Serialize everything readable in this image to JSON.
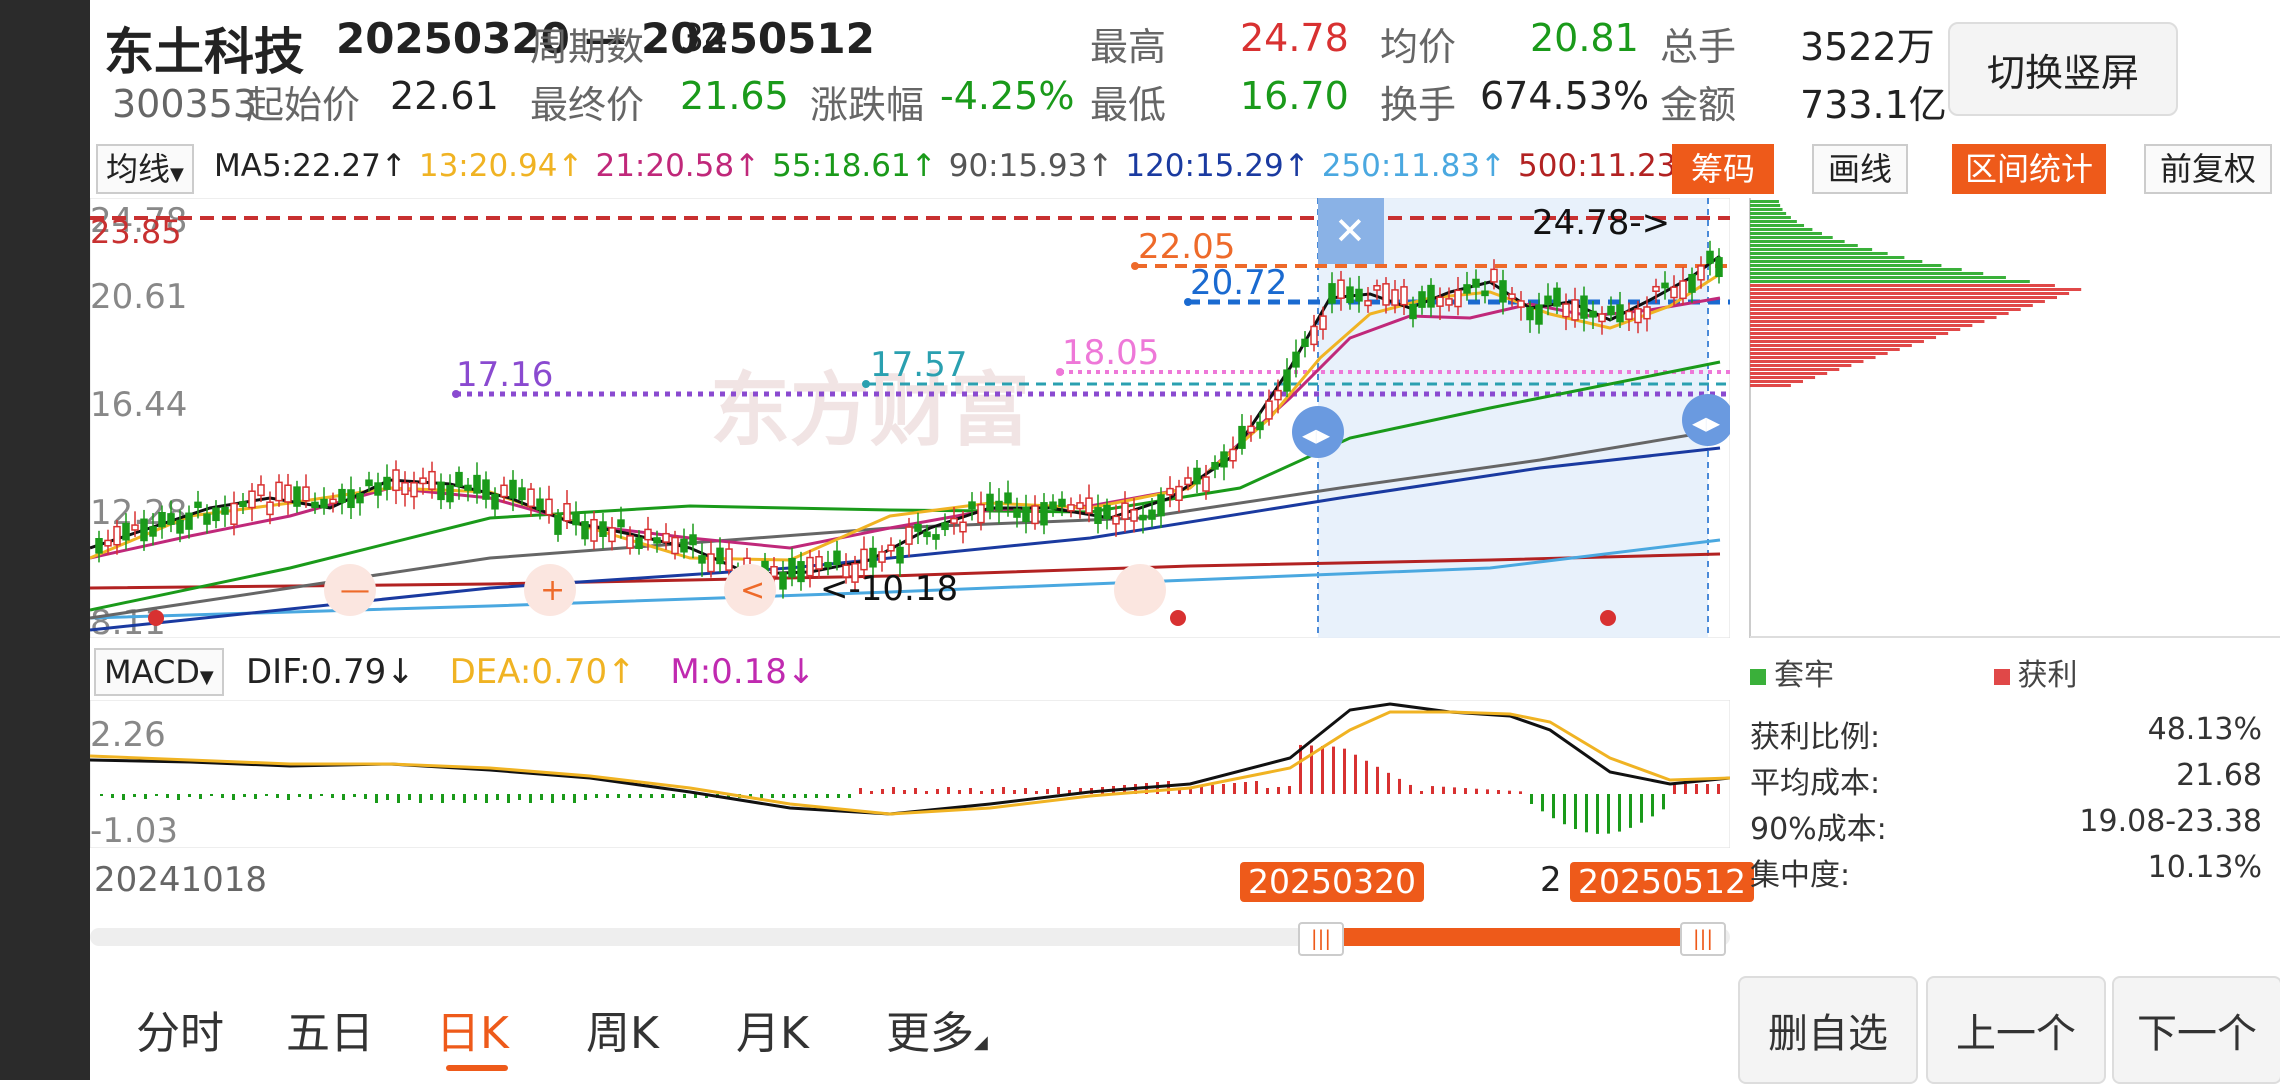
{
  "header": {
    "name": "东土科技",
    "code": "300353",
    "range": "20250320 — 20250512",
    "stats": [
      {
        "label": "周期数",
        "value": "34",
        "color": "#222222"
      },
      {
        "label": "最高",
        "value": "24.78",
        "color": "#d83131"
      },
      {
        "label": "均价",
        "value": "20.81",
        "color": "#1a9a1a"
      },
      {
        "label": "总手",
        "value": "3522万",
        "color": "#222222"
      },
      {
        "label": "起始价",
        "value": "22.61",
        "color": "#222222"
      },
      {
        "label": "最终价",
        "value": "21.65",
        "color": "#1a9a1a"
      },
      {
        "label": "涨跌幅",
        "value": "-4.25%",
        "color": "#1a9a1a"
      },
      {
        "label": "最低",
        "value": "16.70",
        "color": "#1a9a1a"
      },
      {
        "label": "换手",
        "value": "674.53%",
        "color": "#222222"
      },
      {
        "label": "金额",
        "value": "733.1亿",
        "color": "#222222"
      }
    ],
    "switch_label": "切换竖屏"
  },
  "ma_bar": {
    "selector": "均线",
    "items": [
      {
        "text": "MA5:22.27↑",
        "color": "#222222"
      },
      {
        "text": "13:20.94↑",
        "color": "#f0b323"
      },
      {
        "text": "21:20.58↑",
        "color": "#c0287a"
      },
      {
        "text": "55:18.61↑",
        "color": "#1a9a1a"
      },
      {
        "text": "90:15.93↑",
        "color": "#555555"
      },
      {
        "text": "120:15.29↑",
        "color": "#1a3aa0"
      },
      {
        "text": "250:11.83↑",
        "color": "#4aa8e0"
      },
      {
        "text": "500:11.23↑",
        "color": "#b22222"
      }
    ],
    "buttons": [
      "筹码",
      "画线",
      "区间统计",
      "前复权"
    ]
  },
  "price_axis": [
    "24.78",
    "23.85",
    "20.61",
    "16.44",
    "12.28",
    "8.11"
  ],
  "annotations": {
    "high_label": "24.78->",
    "low_label": "<-10.18",
    "levels": [
      {
        "label": "22.05",
        "color": "#ee6a2a"
      },
      {
        "label": "20.72",
        "color": "#1a6ad0"
      },
      {
        "label": "17.16",
        "color": "#8a4ad0"
      },
      {
        "label": "17.57",
        "color": "#2aa0b0"
      },
      {
        "label": "18.05",
        "color": "#ee78d8"
      }
    ],
    "watermark": "东方财富",
    "close_glyph": "✕"
  },
  "macd": {
    "selector": "MACD",
    "dif": "DIF:0.79↓",
    "dea": "DEA:0.70↑",
    "m": "M:0.18↓",
    "axis_top": "2.26",
    "axis_bottom": "-1.03"
  },
  "dates": {
    "start": "20241018",
    "tag_start": "20250320",
    "tag_end": "20250512",
    "partial": "2"
  },
  "chips": {
    "legend_trapped": "套牢",
    "legend_profit": "获利",
    "rows": [
      {
        "label": "获利比例:",
        "value": "48.13%"
      },
      {
        "label": "平均成本:",
        "value": "21.68"
      },
      {
        "label": "90%成本:",
        "value": "19.08-23.38"
      },
      {
        "label": "集中度:",
        "value": "10.13%"
      }
    ]
  },
  "tabs": [
    "分时",
    "五日",
    "日K",
    "周K",
    "月K",
    "更多"
  ],
  "active_tab": "日K",
  "bottom_buttons": [
    "删自选",
    "上一个",
    "下一个"
  ],
  "colors": {
    "accent": "#ee5a1a",
    "up": "#d83131",
    "down": "#1a9a1a"
  }
}
